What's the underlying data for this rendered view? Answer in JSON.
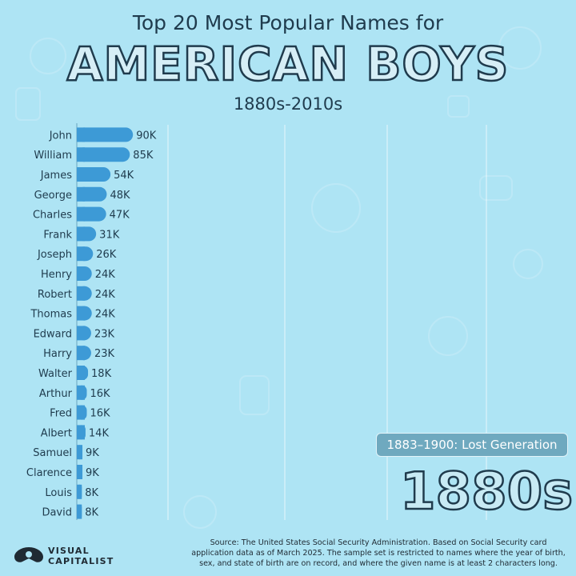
{
  "title_top": "Top 20 Most Popular Names for",
  "title_main": "AMERICAN BOYS",
  "subtitle": "1880s-2010s",
  "era_label": "1883–1900: Lost Generation",
  "year_label": "1880s",
  "source": "Source: The United States Social Security Administration. Based on Social Security card application data as of March 2025. The sample set is restricted to names where the year of birth, sex, and state of birth are on record, and where the given name is at least 2 characters long.",
  "logo": {
    "line1": "VISUAL",
    "line2": "CAPITALIST"
  },
  "colors": {
    "background": "#aee4f4",
    "bar": "#3d9ad6",
    "text": "#1f3b4d"
  },
  "chart_data": {
    "type": "bar",
    "orientation": "horizontal",
    "categories": [
      "John",
      "William",
      "James",
      "George",
      "Charles",
      "Frank",
      "Joseph",
      "Henry",
      "Robert",
      "Thomas",
      "Edward",
      "Harry",
      "Walter",
      "Arthur",
      "Fred",
      "Albert",
      "Samuel",
      "Clarence",
      "Louis",
      "David"
    ],
    "values": [
      90,
      85,
      54,
      48,
      47,
      31,
      26,
      24,
      24,
      24,
      23,
      23,
      18,
      16,
      16,
      14,
      9,
      9,
      8,
      8
    ],
    "value_labels": [
      "90K",
      "85K",
      "54K",
      "48K",
      "47K",
      "31K",
      "26K",
      "24K",
      "24K",
      "24K",
      "23K",
      "23K",
      "18K",
      "16K",
      "16K",
      "14K",
      "9K",
      "9K",
      "8K",
      "8K"
    ],
    "unit": "K",
    "grid": true,
    "legend": "none"
  }
}
